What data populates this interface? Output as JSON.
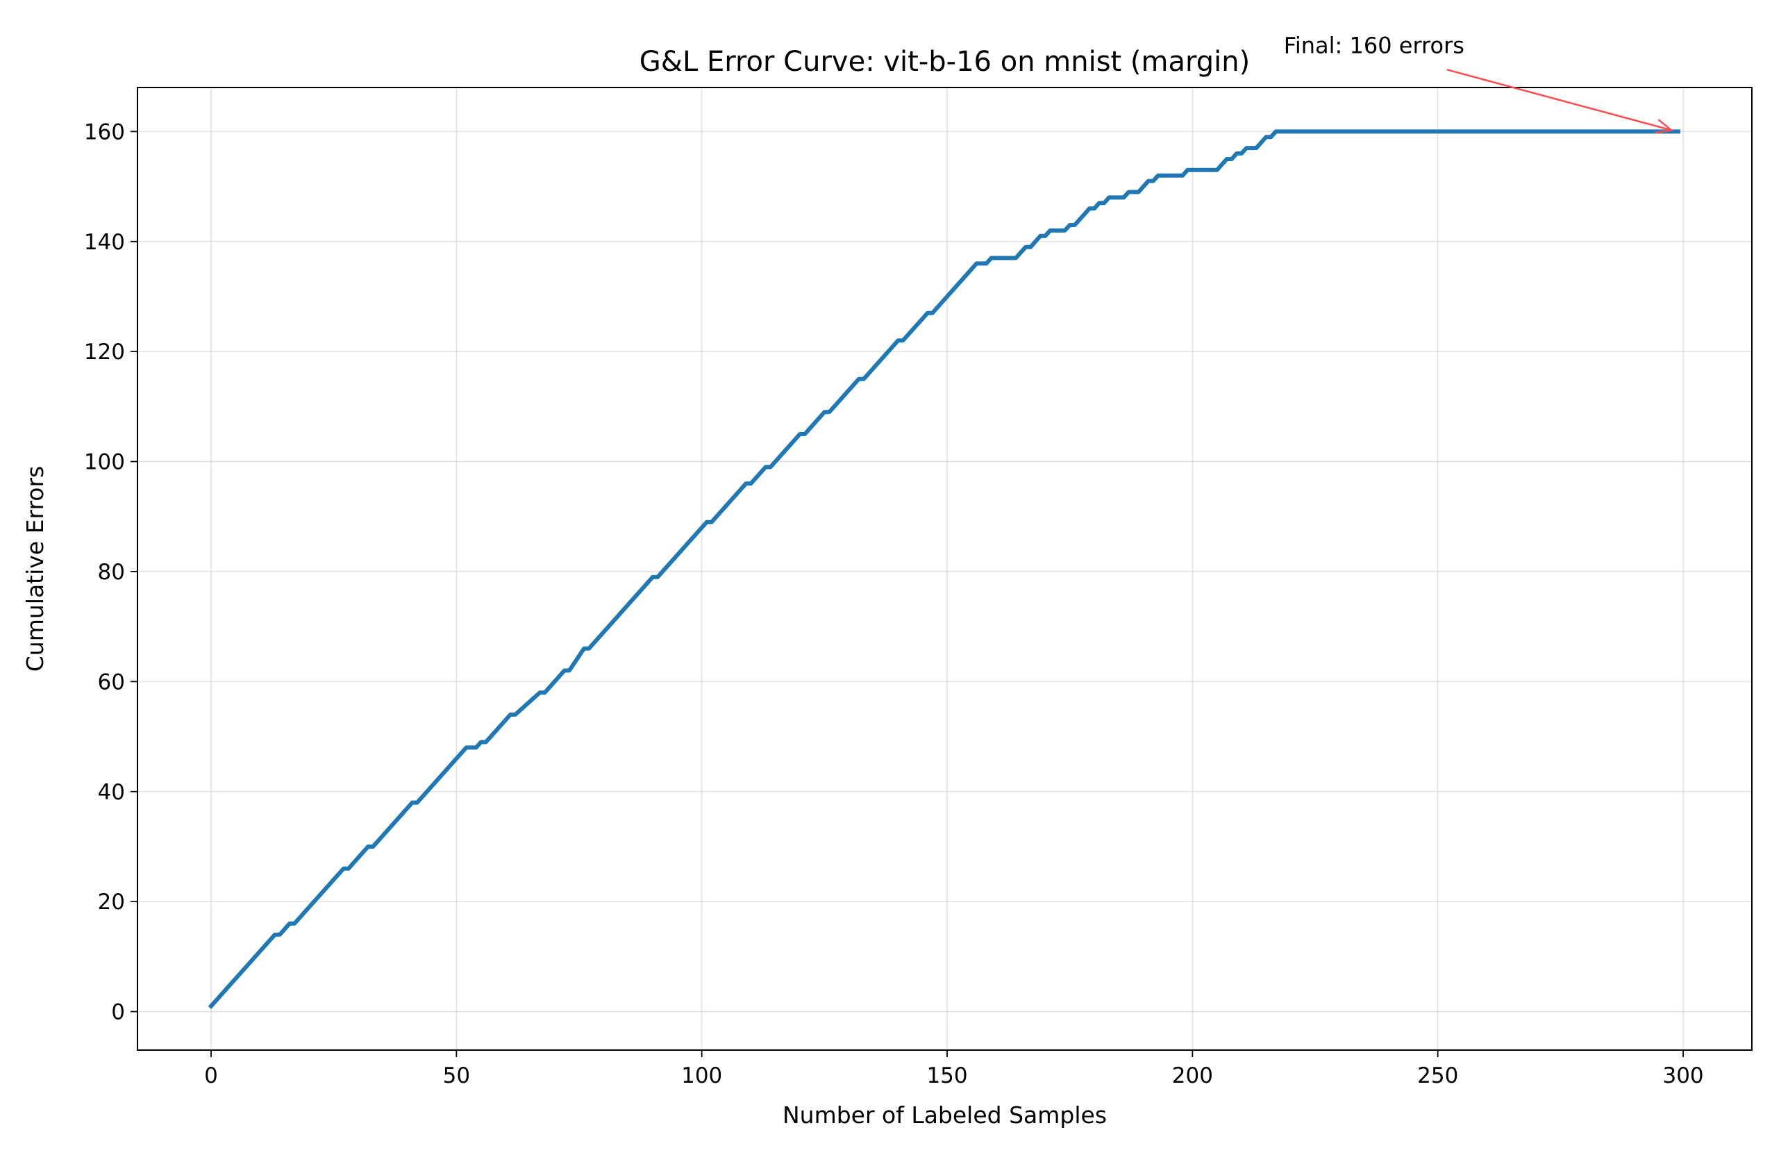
{
  "chart_data": {
    "type": "line",
    "title": "G&L Error Curve: vit-b-16 on mnist (margin)",
    "xlabel": "Number of Labeled Samples",
    "ylabel": "Cumulative Errors",
    "xlim": [
      -15,
      314
    ],
    "ylim": [
      -7,
      168
    ],
    "xticks": [
      0,
      50,
      100,
      150,
      200,
      250,
      300
    ],
    "yticks": [
      0,
      20,
      40,
      60,
      80,
      100,
      120,
      140,
      160
    ],
    "grid": true,
    "legend": "none",
    "line_color": "#1f77b4",
    "annotation_color": "#ff4d4d",
    "series": [
      {
        "x": [
          0,
          13,
          14,
          16,
          17,
          27,
          28,
          32,
          33,
          41,
          42,
          52,
          54,
          55,
          56,
          61,
          62,
          67,
          68,
          72,
          73,
          76,
          77,
          90,
          91,
          101,
          102,
          109,
          110,
          113,
          114,
          120,
          121,
          125,
          126,
          132,
          133,
          140,
          141,
          146,
          147,
          156,
          158,
          159,
          164,
          165,
          166,
          167,
          168,
          169,
          170,
          171,
          172,
          174,
          175,
          176,
          177,
          178,
          179,
          180,
          181,
          182,
          183,
          184,
          186,
          187,
          189,
          190,
          191,
          192,
          193,
          195,
          196,
          198,
          199,
          200,
          204,
          205,
          206,
          207,
          208,
          209,
          210,
          211,
          212,
          213,
          214,
          215,
          216,
          217,
          218,
          219,
          220,
          299
        ],
        "y": [
          1,
          14,
          14,
          16,
          16,
          26,
          26,
          30,
          30,
          38,
          38,
          48,
          48,
          49,
          49,
          54,
          54,
          58,
          58,
          62,
          62,
          66,
          66,
          79,
          79,
          89,
          89,
          96,
          96,
          99,
          99,
          105,
          105,
          109,
          109,
          115,
          115,
          122,
          122,
          127,
          127,
          136,
          136,
          137,
          137,
          138,
          139,
          139,
          140,
          141,
          141,
          142,
          142,
          142,
          143,
          143,
          144,
          145,
          146,
          146,
          147,
          147,
          148,
          148,
          148,
          149,
          149,
          150,
          151,
          151,
          152,
          152,
          152,
          152,
          153,
          153,
          153,
          153,
          154,
          155,
          155,
          156,
          156,
          157,
          157,
          157,
          158,
          159,
          159,
          160,
          160,
          160,
          160,
          160
        ]
      }
    ],
    "annotation": {
      "text": "Final: 160 errors",
      "point": [
        299,
        160
      ],
      "text_anchor_point": [
        237,
        172
      ]
    }
  }
}
